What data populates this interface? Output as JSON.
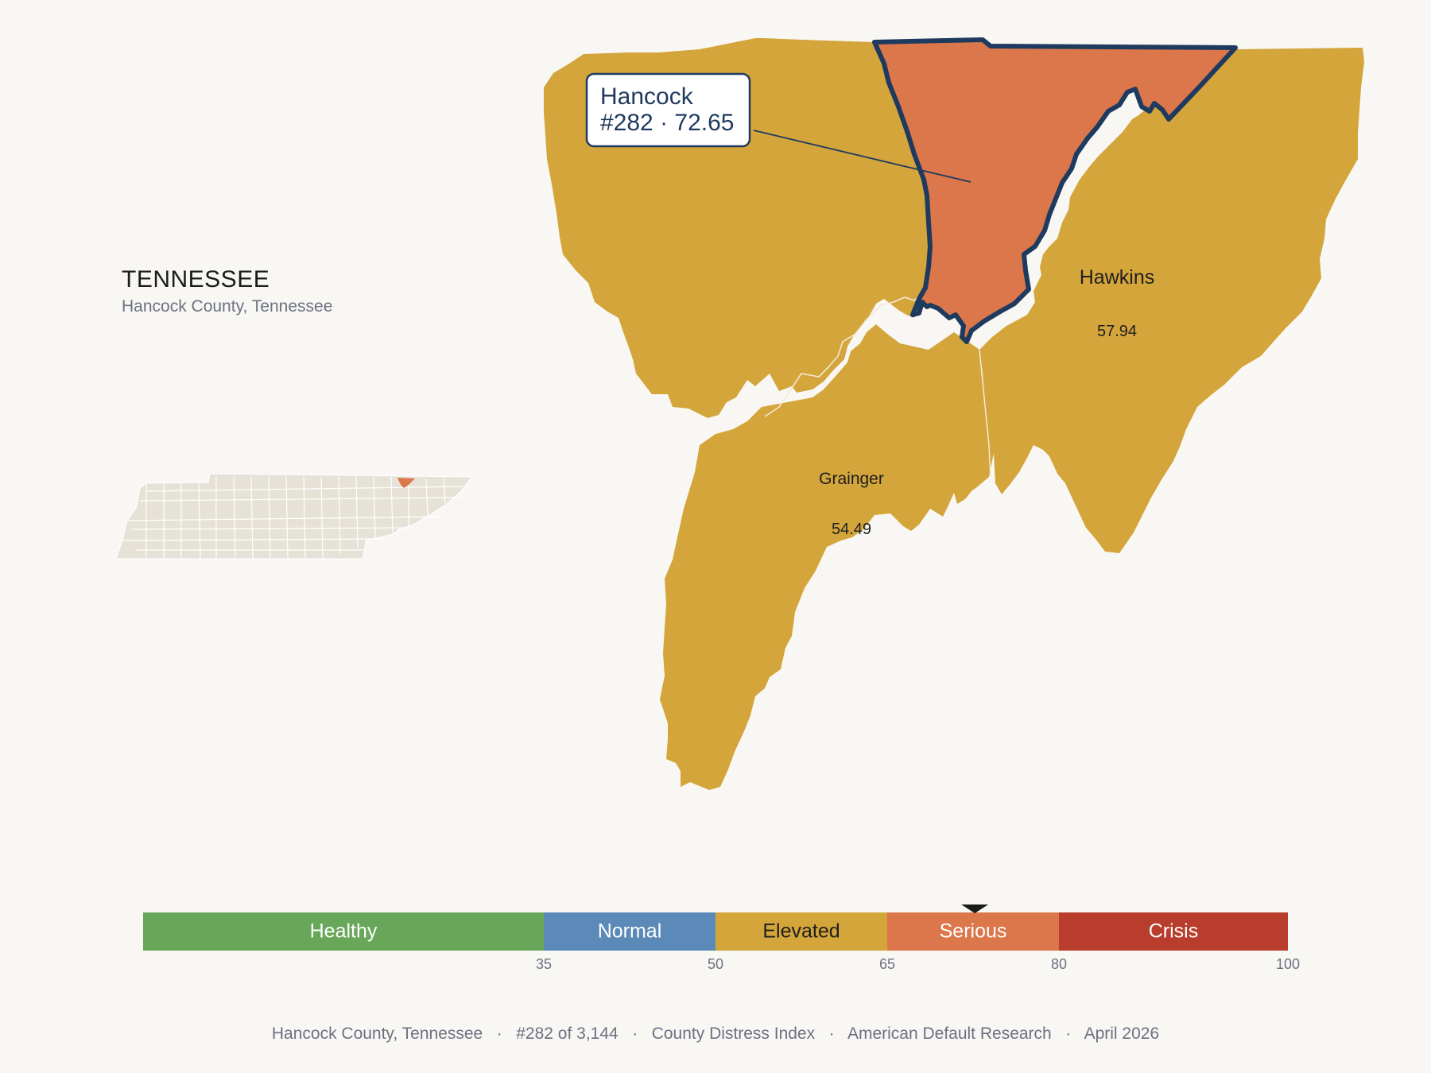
{
  "header": {
    "state": "TENNESSEE",
    "subtitle": "Hancock County, Tennessee"
  },
  "counties": {
    "hancock": {
      "name": "Hancock",
      "rank": "#282",
      "score": "72.65",
      "callout": "#282 · 72.65",
      "color": "#db774a"
    },
    "hawkins": {
      "name": "Hawkins",
      "score": "57.94",
      "color": "#d4a53b"
    },
    "grainger": {
      "name": "Grainger",
      "score": "54.49",
      "color": "#d4a53b"
    },
    "claiborne": {
      "color": "#d4a53b"
    }
  },
  "colors": {
    "highlight_outline": "#1f3a5f",
    "background": "#f9f7f4",
    "inset_fill": "#e7e2d8"
  },
  "scale": {
    "min": 0,
    "max": 100,
    "marker_value": 72.65,
    "bands": [
      {
        "label": "Healthy",
        "from": 0,
        "to": 35,
        "color": "#68a759",
        "text_color": "#ffffff"
      },
      {
        "label": "Normal",
        "from": 35,
        "to": 50,
        "color": "#5b8ab8",
        "text_color": "#ffffff"
      },
      {
        "label": "Elevated",
        "from": 50,
        "to": 65,
        "color": "#d4a53b",
        "text_color": "#1e1e1e"
      },
      {
        "label": "Serious",
        "from": 65,
        "to": 80,
        "color": "#db774a",
        "text_color": "#ffffff"
      },
      {
        "label": "Crisis",
        "from": 80,
        "to": 100,
        "color": "#b83d2c",
        "text_color": "#ffffff"
      }
    ],
    "ticks": [
      "35",
      "50",
      "65",
      "80",
      "100"
    ]
  },
  "footer": {
    "text": "Hancock County, Tennessee   ·   #282 of 3,144   ·   County Distress Index   ·   American Default Research   ·   April 2026"
  }
}
